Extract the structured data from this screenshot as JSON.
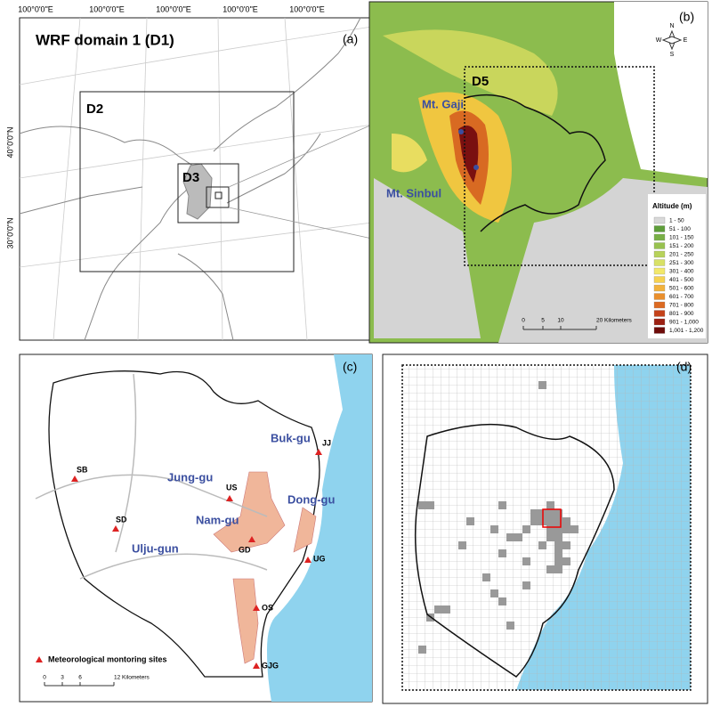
{
  "panel_a": {
    "title": "WRF domain 1 (D1)",
    "tag": "(a)",
    "lon_labels": [
      "100°0'0\"E",
      "100°0'0\"E",
      "100°0'0\"E",
      "100°0'0\"E",
      "100°0'0\"E"
    ],
    "lat_labels": [
      "40°0'0\"N",
      "30°0'0\"N"
    ],
    "domains": [
      "D2",
      "D3"
    ]
  },
  "panel_b": {
    "tag": "(b)",
    "domain": "D5",
    "peaks": [
      "Mt. Gaji",
      "Mt. Sinbul"
    ],
    "compass": [
      "N",
      "E",
      "S",
      "W"
    ],
    "legend_title": "Altitude (m)",
    "legend": [
      {
        "label": "1 - 50",
        "color": "#d9d9d9"
      },
      {
        "label": "51 - 100",
        "color": "#5e9e3a"
      },
      {
        "label": "101 - 150",
        "color": "#79b046"
      },
      {
        "label": "151 - 200",
        "color": "#98c24f"
      },
      {
        "label": "201 - 250",
        "color": "#b7d25a"
      },
      {
        "label": "251 - 300",
        "color": "#d8e166"
      },
      {
        "label": "301 - 400",
        "color": "#f2e86a"
      },
      {
        "label": "401 - 500",
        "color": "#f6d250"
      },
      {
        "label": "501 - 600",
        "color": "#f2b23c"
      },
      {
        "label": "601 - 700",
        "color": "#ea8f2c"
      },
      {
        "label": "701 - 800",
        "color": "#dc6a22"
      },
      {
        "label": "801 - 900",
        "color": "#c4421a"
      },
      {
        "label": "901 - 1,000",
        "color": "#9c2012"
      },
      {
        "label": "1,001 - 1,200",
        "color": "#6e0c0a"
      }
    ],
    "scale": [
      "0",
      "5",
      "10",
      "20 Kilometers"
    ]
  },
  "panel_c": {
    "tag": "(c)",
    "districts": [
      "Buk-gu",
      "Jung-gu",
      "Dong-gu",
      "Nam-gu",
      "Ulju-gun"
    ],
    "sites": [
      "JJ",
      "SB",
      "US",
      "SD",
      "GD",
      "UG",
      "OS",
      "GJG"
    ],
    "legend": "Meteorological montoring sites",
    "scale": [
      "0",
      "3",
      "6",
      "12 Kilometers"
    ]
  },
  "panel_d": {
    "tag": "(d)"
  }
}
